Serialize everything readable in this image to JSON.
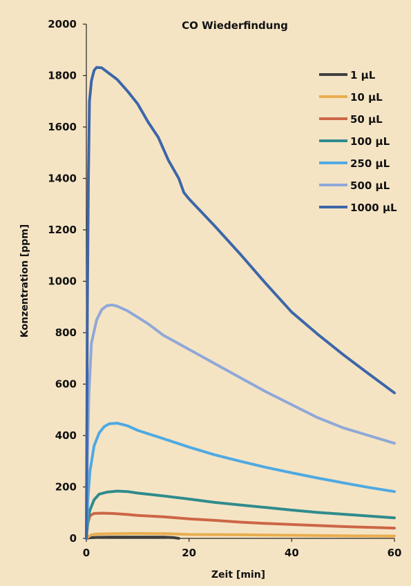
{
  "chart_data": {
    "type": "line",
    "title": "CO Wiederfindung",
    "xlabel": "Zeit  [min]",
    "ylabel": "Konzentration  [ppm]",
    "xlim": [
      0,
      60
    ],
    "ylim": [
      0,
      2000
    ],
    "x_ticks": [
      0,
      20,
      40,
      60
    ],
    "y_ticks": [
      0,
      200,
      400,
      600,
      800,
      1000,
      1200,
      1400,
      1600,
      1800,
      2000
    ],
    "grid": false,
    "legend_position": "top-right",
    "series": [
      {
        "name": "1 µL",
        "color": "#3f3f3f",
        "points": [
          [
            0,
            0
          ],
          [
            0.5,
            2
          ],
          [
            2,
            4
          ],
          [
            5,
            5
          ],
          [
            10,
            5
          ],
          [
            15,
            5
          ],
          [
            17,
            3
          ],
          [
            18,
            0
          ]
        ]
      },
      {
        "name": "10 µL",
        "color": "#e8ad4f",
        "points": [
          [
            0,
            0
          ],
          [
            0.5,
            8
          ],
          [
            1,
            14
          ],
          [
            2,
            17
          ],
          [
            5,
            18
          ],
          [
            10,
            19
          ],
          [
            16,
            18
          ],
          [
            20,
            15
          ],
          [
            30,
            14
          ],
          [
            40,
            12
          ],
          [
            50,
            10
          ],
          [
            60,
            9
          ]
        ]
      },
      {
        "name": "50 µL",
        "color": "#cc6646",
        "points": [
          [
            0,
            0
          ],
          [
            0.3,
            60
          ],
          [
            0.7,
            88
          ],
          [
            1.5,
            97
          ],
          [
            3,
            98
          ],
          [
            5,
            97
          ],
          [
            8,
            93
          ],
          [
            10,
            89
          ],
          [
            15,
            84
          ],
          [
            20,
            76
          ],
          [
            25,
            70
          ],
          [
            30,
            63
          ],
          [
            35,
            58
          ],
          [
            40,
            54
          ],
          [
            45,
            50
          ],
          [
            50,
            46
          ],
          [
            55,
            43
          ],
          [
            60,
            40
          ]
        ]
      },
      {
        "name": "100 µL",
        "color": "#2f8b8c",
        "points": [
          [
            0,
            0
          ],
          [
            0.3,
            70
          ],
          [
            0.7,
            110
          ],
          [
            1.5,
            150
          ],
          [
            2.5,
            172
          ],
          [
            4,
            180
          ],
          [
            6,
            184
          ],
          [
            8,
            182
          ],
          [
            10,
            176
          ],
          [
            15,
            165
          ],
          [
            20,
            153
          ],
          [
            25,
            140
          ],
          [
            30,
            130
          ],
          [
            35,
            120
          ],
          [
            40,
            110
          ],
          [
            45,
            101
          ],
          [
            50,
            94
          ],
          [
            55,
            87
          ],
          [
            60,
            80
          ]
        ]
      },
      {
        "name": "250 µL",
        "color": "#4fa9e3",
        "points": [
          [
            0,
            0
          ],
          [
            0.3,
            150
          ],
          [
            0.7,
            260
          ],
          [
            1.5,
            360
          ],
          [
            2.5,
            410
          ],
          [
            3.5,
            435
          ],
          [
            4.5,
            446
          ],
          [
            6,
            448
          ],
          [
            8,
            438
          ],
          [
            10,
            420
          ],
          [
            15,
            388
          ],
          [
            20,
            355
          ],
          [
            25,
            325
          ],
          [
            30,
            300
          ],
          [
            35,
            276
          ],
          [
            40,
            255
          ],
          [
            45,
            235
          ],
          [
            50,
            216
          ],
          [
            55,
            198
          ],
          [
            60,
            182
          ]
        ]
      },
      {
        "name": "500 µL",
        "color": "#8fa8d8",
        "points": [
          [
            0,
            0
          ],
          [
            0.2,
            300
          ],
          [
            0.5,
            560
          ],
          [
            1,
            760
          ],
          [
            2,
            850
          ],
          [
            3,
            890
          ],
          [
            4,
            905
          ],
          [
            5,
            908
          ],
          [
            6,
            903
          ],
          [
            8,
            885
          ],
          [
            10,
            860
          ],
          [
            12,
            835
          ],
          [
            15,
            790
          ],
          [
            20,
            735
          ],
          [
            25,
            680
          ],
          [
            30,
            625
          ],
          [
            35,
            570
          ],
          [
            40,
            520
          ],
          [
            45,
            470
          ],
          [
            50,
            430
          ],
          [
            55,
            400
          ],
          [
            60,
            370
          ]
        ]
      },
      {
        "name": "1000 µL",
        "color": "#3d66a9",
        "points": [
          [
            0,
            0
          ],
          [
            0.2,
            900
          ],
          [
            0.4,
            1400
          ],
          [
            0.6,
            1700
          ],
          [
            1,
            1780
          ],
          [
            1.5,
            1820
          ],
          [
            2,
            1832
          ],
          [
            3,
            1830
          ],
          [
            4,
            1815
          ],
          [
            6,
            1785
          ],
          [
            8,
            1740
          ],
          [
            10,
            1690
          ],
          [
            12,
            1620
          ],
          [
            14,
            1560
          ],
          [
            16,
            1470
          ],
          [
            18,
            1400
          ],
          [
            19,
            1345
          ],
          [
            20,
            1320
          ],
          [
            25,
            1215
          ],
          [
            30,
            1105
          ],
          [
            35,
            990
          ],
          [
            40,
            880
          ],
          [
            45,
            795
          ],
          [
            50,
            715
          ],
          [
            55,
            640
          ],
          [
            60,
            566
          ]
        ]
      }
    ]
  }
}
